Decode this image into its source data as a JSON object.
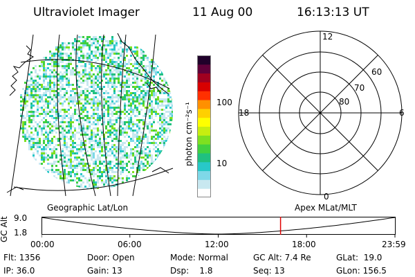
{
  "header": {
    "title": "Ultraviolet Imager",
    "date": "11 Aug 00",
    "time": "16:13:13 UT"
  },
  "colorbar": {
    "unit_label": "photon cm⁻²s⁻¹",
    "ticks": [
      "100",
      "10"
    ],
    "colors": [
      "#ffffff",
      "#c8e8f0",
      "#7fd8e8",
      "#28c8c8",
      "#20c080",
      "#40d040",
      "#7ee020",
      "#c8ee10",
      "#ffff00",
      "#ffd000",
      "#ff9000",
      "#ff3000",
      "#d80000",
      "#a00020",
      "#60003a",
      "#20002a"
    ]
  },
  "polar": {
    "ring_labels": [
      "60",
      "70",
      "80"
    ],
    "clock_labels": {
      "top": "12",
      "left": "18",
      "right": "6",
      "bottom": "0"
    }
  },
  "timeline": {
    "left_caption": "Geographic Lat/Lon",
    "right_caption": "Apex MLat/MLT",
    "axis_label": "GC Alt",
    "y_ticks": [
      "9.0",
      "1.8"
    ],
    "x_ticks": [
      "00:00",
      "06:00",
      "12:00",
      "18:00",
      "23:59"
    ],
    "current_time": "16:13:13",
    "marker_color": "#e00000"
  },
  "status": {
    "row1": {
      "flt": "Flt: 1356",
      "door": "Door: Open",
      "mode": "Mode: Normal",
      "gcalt": "GC Alt: 7.4 Re",
      "glat": "GLat:  19.0"
    },
    "row2": {
      "ip": "IP: 36.0",
      "gain": "Gain: 13",
      "dsp": "Dsp:    1.8",
      "seq": "Seq: 13",
      "glon": "GLon: 156.5"
    }
  }
}
